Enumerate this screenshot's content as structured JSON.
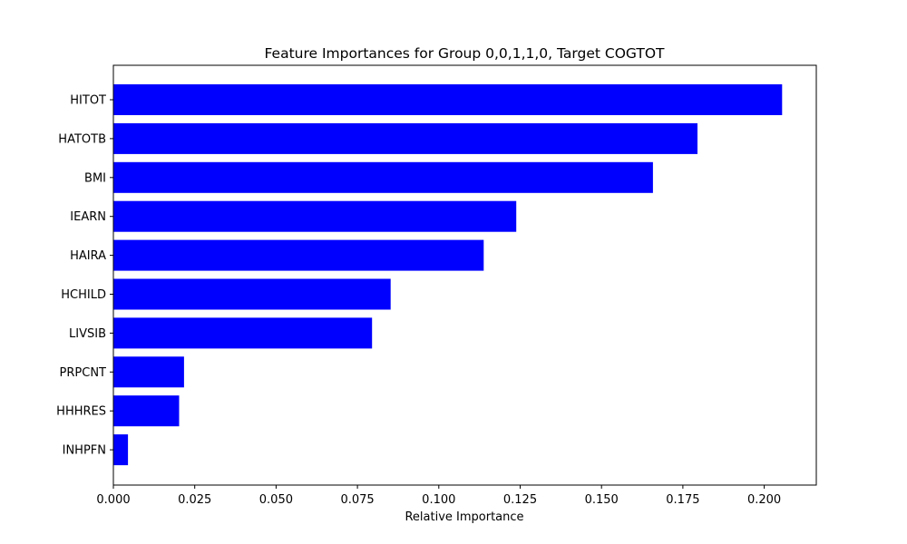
{
  "chart_data": {
    "type": "bar",
    "orientation": "horizontal",
    "title": "Feature Importances for Group 0,0,1,1,0, Target COGTOT",
    "xlabel": "Relative Importance",
    "ylabel": "",
    "categories": [
      "HITOT",
      "HATOTB",
      "BMI",
      "IEARN",
      "HAIRA",
      "HCHILD",
      "LIVSIB",
      "PRPCNT",
      "HHHRES",
      "INHPFN"
    ],
    "values": [
      0.2055,
      0.1795,
      0.1658,
      0.1238,
      0.1138,
      0.0852,
      0.0795,
      0.0217,
      0.0202,
      0.0045
    ],
    "xlim": [
      0,
      0.216
    ],
    "xticks": [
      "0.000",
      "0.025",
      "0.050",
      "0.075",
      "0.100",
      "0.125",
      "0.150",
      "0.175",
      "0.200"
    ],
    "xtick_values": [
      0,
      0.025,
      0.05,
      0.075,
      0.1,
      0.125,
      0.15,
      0.175,
      0.2
    ],
    "grid": false,
    "bar_color": "#0000ff"
  }
}
